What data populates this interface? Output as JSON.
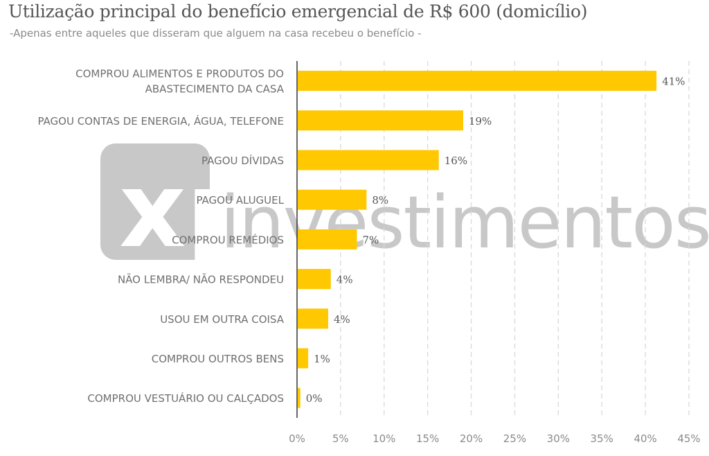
{
  "header": {
    "title": "Utilização principal do benefício emergencial de R$ 600 (domicílio)",
    "subtitle": "-Apenas entre aqueles que disseram que alguem na casa recebeu o benefício -"
  },
  "watermark": {
    "logo_text": "xp",
    "brand_text": "investimentos",
    "color": "#c8c8c8"
  },
  "colors": {
    "bar": "#ffc800",
    "grid": "#d9d9d9",
    "axis": "#333333"
  },
  "chart_data": {
    "type": "bar",
    "orientation": "horizontal",
    "title": "Utilização principal do benefício emergencial de R$ 600 (domicílio)",
    "subtitle": "-Apenas entre aqueles que disseram que alguem na casa recebeu o benefício -",
    "categories": [
      [
        "COMPROU ALIMENTOS E PRODUTOS DO",
        "ABASTECIMENTO DA CASA"
      ],
      [
        "PAGOU CONTAS DE ENERGIA, ÁGUA, TELEFONE"
      ],
      [
        "PAGOU DÍVIDAS"
      ],
      [
        "PAGOU ALUGUEL"
      ],
      [
        "COMPROU REMÉDIOS"
      ],
      [
        "NÃO LEMBRA/ NÃO RESPONDEU"
      ],
      [
        "USOU EM OUTRA COISA"
      ],
      [
        "COMPROU OUTROS BENS"
      ],
      [
        "COMPROU VESTUÁRIO OU CALÇADOS"
      ]
    ],
    "values": [
      41.2,
      19.0,
      16.2,
      7.9,
      6.8,
      3.8,
      3.5,
      1.2,
      0.3
    ],
    "value_labels": [
      "41%",
      "19%",
      "16%",
      "8%",
      "7%",
      "4%",
      "4%",
      "1%",
      "0%"
    ],
    "xlim": [
      0,
      45
    ],
    "xticks": [
      0,
      5,
      10,
      15,
      20,
      25,
      30,
      35,
      40,
      45
    ],
    "xtick_labels": [
      "0%",
      "5%",
      "10%",
      "15%",
      "20%",
      "25%",
      "30%",
      "35%",
      "40%",
      "45%"
    ],
    "grid": "vertical-dashed",
    "legend": "none"
  }
}
